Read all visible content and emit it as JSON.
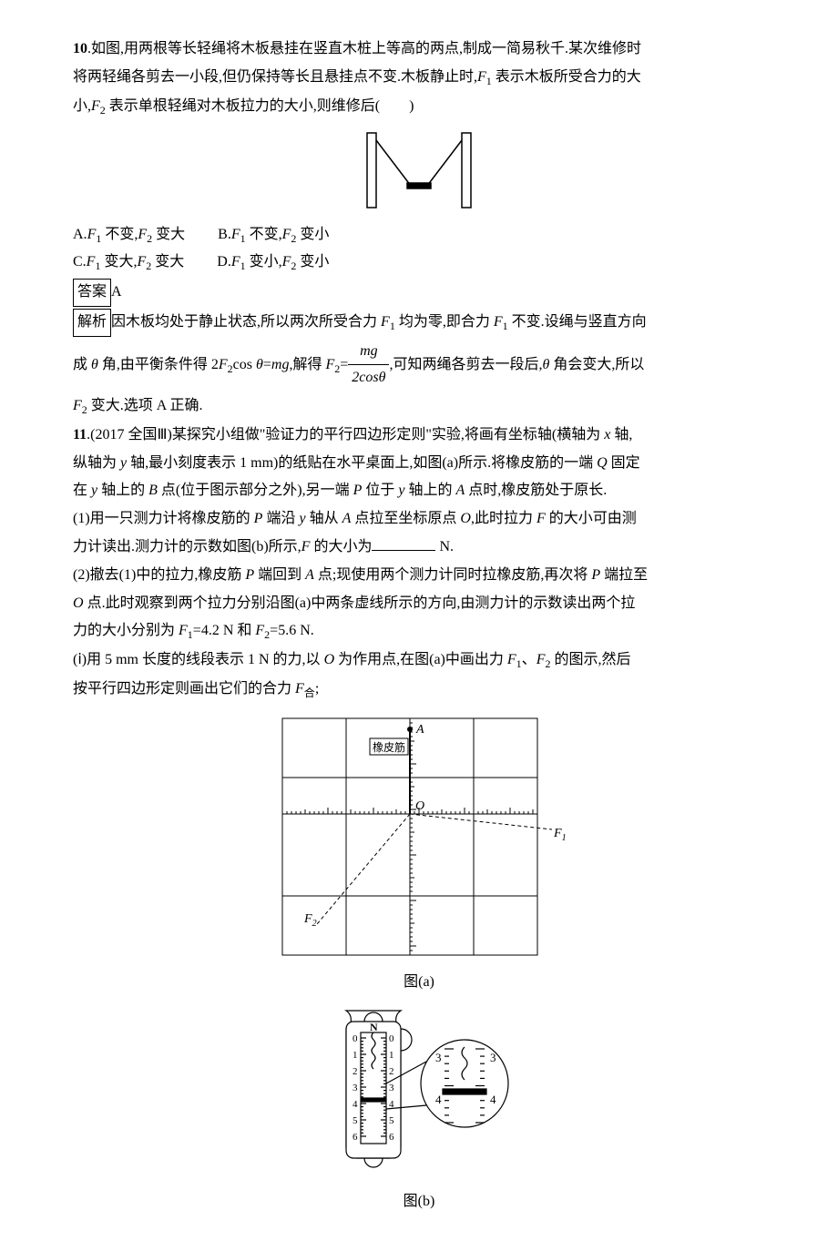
{
  "q10": {
    "number": "10",
    "stem_l1": ".如图,用两根等长轻绳将木板悬挂在竖直木桩上等高的两点,制成一简易秋千.某次维修时",
    "stem_l2": "将两轻绳各剪去一小段,但仍保持等长且悬挂点不变.木板静止时,",
    "stem_l2b": " 表示木板所受合力的大",
    "stem_l3a": "小,",
    "stem_l3b": " 表示单根轻绳对木板拉力的大小,则维修后(　　)",
    "F1": "F",
    "F1s": "1",
    "F2": "F",
    "F2s": "2",
    "optA_a": "A.",
    "optA_b": " 不变,",
    "optA_c": " 变大",
    "optB_a": "B.",
    "optB_b": " 不变,",
    "optB_c": " 变小",
    "optC_a": "C.",
    "optC_b": " 变大,",
    "optC_c": " 变大",
    "optD_a": "D.",
    "optD_b": " 变小,",
    "optD_c": " 变小",
    "ans_label": "答案",
    "ans": "A",
    "expl_label": "解析",
    "expl_1a": "因木板均处于静止状态,所以两次所受合力 ",
    "expl_1b": " 均为零,即合力 ",
    "expl_1c": " 不变.设绳与竖直方向",
    "expl_2a": "成 ",
    "theta": "θ",
    "expl_2b": " 角,由平衡条件得 2",
    "expl_2c": "cos ",
    "expl_2d": "=",
    "mg": "mg",
    "expl_2e": ",解得 ",
    "expl_2f": "=",
    "frac_num": "mg",
    "frac_den_a": "2cos",
    "frac_den_b": "θ",
    "expl_2h": ",可知两绳各剪去一段后,",
    "expl_2i": " 角会变大,所以",
    "expl_3": " 变大.选项 A 正确."
  },
  "q11": {
    "number": "11",
    "src": ".(2017 全国Ⅲ)某探究小组做\"验证力的平行四边形定则\"实验,将画有坐标轴(横轴为 ",
    "x": "x",
    "axis_a": " 轴,",
    "stem_l2a": "纵轴为 ",
    "y": "y",
    "stem_l2b": " 轴,最小刻度表示 1 mm)的纸贴在水平桌面上,如图(a)所示.将橡皮筋的一端 ",
    "Q": "Q",
    "stem_l2c": " 固定",
    "stem_l3a": "在 ",
    "stem_l3b": " 轴上的 ",
    "B": "B",
    "stem_l3c": " 点(位于图示部分之外),另一端 ",
    "P": "P",
    "stem_l3d": " 位于 ",
    "stem_l3e": " 轴上的 ",
    "A": "A",
    "stem_l3f": " 点时,橡皮筋处于原长.",
    "p1_a": "(1)用一只测力计将橡皮筋的 ",
    "p1_b": " 端沿 ",
    "p1_c": " 轴从 ",
    "p1_d": " 点拉至坐标原点 ",
    "O": "O",
    "p1_e": ",此时拉力 ",
    "F": "F",
    "p1_f": " 的大小可由测",
    "p1_g": "力计读出.测力计的示数如图(b)所示,",
    "p1_h": " 的大小为",
    "p1_unit": " N.",
    "p2_a": "(2)撤去(1)中的拉力,橡皮筋 ",
    "p2_b": " 端回到 ",
    "p2_c": " 点;现使用两个测力计同时拉橡皮筋,再次将 ",
    "p2_d": " 端拉至",
    "p2_e": " 点.此时观察到两个拉力分别沿图(a)中两条虚线所示的方向,由测力计的示数读出两个拉",
    "p2_f": "力的大小分别为 ",
    "p2_g": "=4.2 N 和 ",
    "p2_h": "=5.6 N.",
    "pi_a": "(ⅰ)用 5 mm 长度的线段表示 1 N 的力,以 ",
    "pi_b": " 为作用点,在图(a)中画出力 ",
    "pi_c": "、",
    "pi_d": " 的图示,然后",
    "pi_e": "按平行四边形定则画出它们的合力 ",
    "Fhe": "F",
    "Fhe_sub": "合",
    "pi_f": ";",
    "fig_a_labels": {
      "A": "A",
      "O": "O",
      "F1": "F",
      "F1s": "1",
      "F2": "F",
      "F2s": "2",
      "rubber": "橡皮筋"
    },
    "cap_a": "图(a)",
    "fig_b_labels": {
      "N": "N",
      "nums": [
        "0",
        "1",
        "2",
        "3",
        "4",
        "5",
        "6"
      ],
      "z3": "3",
      "z4": "4"
    },
    "cap_b": "图(b)"
  },
  "svg": {
    "swing": {
      "stroke": "#000000",
      "fill": "#ffffff"
    },
    "grid": {
      "stroke": "#000000",
      "bg": "#ffffff",
      "dash": "3,3"
    },
    "meter": {
      "stroke": "#000000",
      "bg": "#ffffff"
    }
  }
}
